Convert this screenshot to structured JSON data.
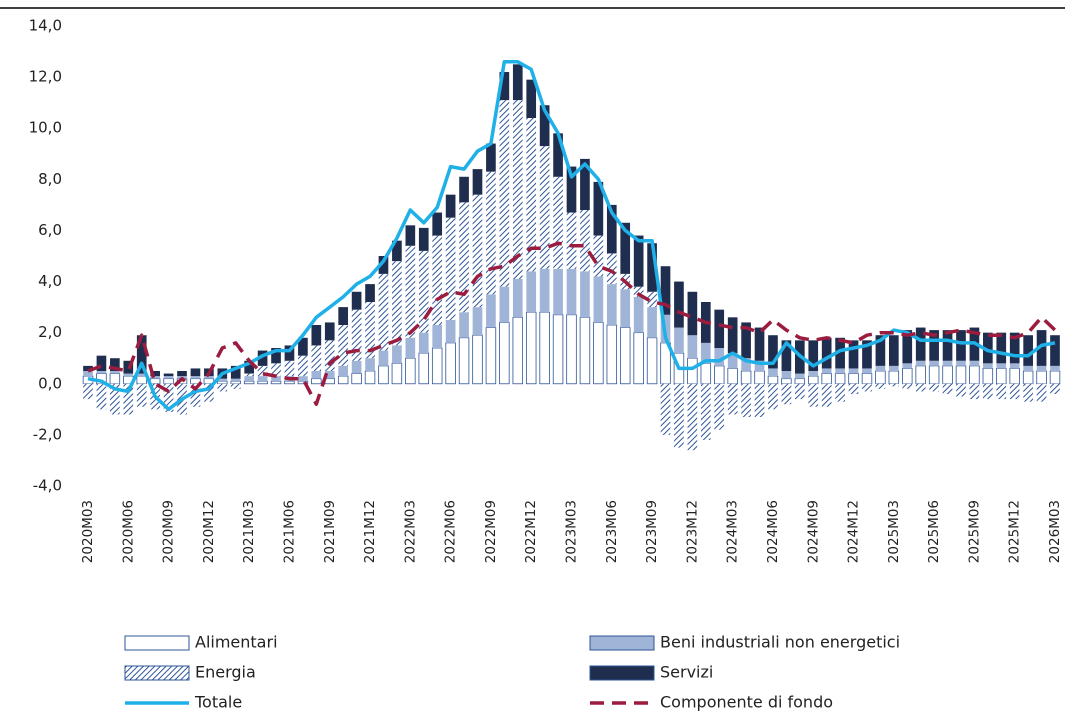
{
  "chart_data": {
    "type": "stacked-bar-line",
    "categories": [
      "2020M03",
      null,
      null,
      "2020M06",
      null,
      null,
      "2020M09",
      null,
      null,
      "2020M12",
      null,
      null,
      "2021M03",
      null,
      null,
      "2021M06",
      null,
      null,
      "2021M09",
      null,
      null,
      "2021M12",
      null,
      null,
      "2022M03",
      null,
      null,
      "2022M06",
      null,
      null,
      "2022M09",
      null,
      null,
      "2022M12",
      null,
      null,
      "2023M03",
      null,
      null,
      "2023M06",
      null,
      null,
      "2023M09",
      null,
      null,
      "2023M12",
      null,
      null,
      "2024M03",
      null,
      null,
      "2024M06",
      null,
      null,
      "2024M09",
      null,
      null,
      "2024M12",
      null,
      null,
      "2025M03",
      null,
      null,
      "2025M06",
      null,
      null,
      "2025M09",
      null,
      null,
      "2025M12",
      null,
      null,
      "2026M03"
    ],
    "series": [
      {
        "name": "Alimentari",
        "kind": "bar",
        "color": "#ffffff",
        "values": [
          0.3,
          0.4,
          0.4,
          0.3,
          0.3,
          0.2,
          0.2,
          0.2,
          0.2,
          0.2,
          0.1,
          0.1,
          0.1,
          0.1,
          0.1,
          0.1,
          0.1,
          0.2,
          0.2,
          0.3,
          0.4,
          0.5,
          0.7,
          0.8,
          1.0,
          1.2,
          1.4,
          1.6,
          1.8,
          1.9,
          2.2,
          2.4,
          2.6,
          2.8,
          2.8,
          2.7,
          2.7,
          2.6,
          2.4,
          2.3,
          2.2,
          2.0,
          1.8,
          1.6,
          1.2,
          1.0,
          0.8,
          0.7,
          0.6,
          0.5,
          0.5,
          0.3,
          0.2,
          0.2,
          0.3,
          0.4,
          0.4,
          0.4,
          0.4,
          0.5,
          0.5,
          0.6,
          0.7,
          0.7,
          0.7,
          0.7,
          0.7,
          0.6,
          0.6,
          0.6,
          0.5,
          0.5,
          0.5
        ]
      },
      {
        "name": "Beni industriali non energetici",
        "kind": "bar",
        "color": "#9fb4d6",
        "values": [
          0.2,
          0.1,
          0.1,
          0.1,
          0.1,
          0.1,
          0.1,
          0.1,
          0.1,
          0.1,
          0.1,
          0.1,
          0.2,
          0.2,
          0.2,
          0.2,
          0.2,
          0.3,
          0.3,
          0.4,
          0.5,
          0.5,
          0.6,
          0.7,
          0.8,
          0.8,
          0.9,
          0.9,
          1.0,
          1.1,
          1.3,
          1.4,
          1.5,
          1.6,
          1.7,
          1.8,
          1.8,
          1.8,
          1.8,
          1.6,
          1.5,
          1.4,
          1.2,
          1.1,
          1.0,
          0.9,
          0.8,
          0.7,
          0.6,
          0.5,
          0.4,
          0.3,
          0.3,
          0.2,
          0.2,
          0.2,
          0.2,
          0.2,
          0.2,
          0.2,
          0.2,
          0.2,
          0.2,
          0.2,
          0.2,
          0.2,
          0.2,
          0.2,
          0.2,
          0.2,
          0.2,
          0.2,
          0.2
        ]
      },
      {
        "name": "Energia",
        "kind": "bar",
        "color": "#2e5597",
        "pattern": "hatch",
        "values": [
          -0.6,
          -1.0,
          -1.2,
          -1.2,
          -0.9,
          -1.0,
          -1.1,
          -1.2,
          -0.9,
          -0.7,
          -0.3,
          -0.2,
          0.1,
          0.4,
          0.5,
          0.6,
          0.8,
          1.0,
          1.2,
          1.6,
          2.0,
          2.2,
          3.0,
          3.3,
          3.6,
          3.2,
          3.5,
          4.0,
          4.3,
          4.4,
          4.8,
          7.3,
          7.0,
          6.0,
          4.8,
          3.6,
          2.2,
          2.4,
          1.6,
          1.2,
          0.6,
          0.4,
          0.6,
          -2.0,
          -2.5,
          -2.6,
          -2.2,
          -1.8,
          -1.2,
          -1.3,
          -1.3,
          -1.0,
          -0.8,
          -0.6,
          -0.9,
          -0.9,
          -0.7,
          -0.4,
          -0.3,
          -0.2,
          -0.1,
          -0.2,
          -0.3,
          -0.3,
          -0.4,
          -0.5,
          -0.6,
          -0.6,
          -0.6,
          -0.6,
          -0.7,
          -0.7,
          -0.4
        ]
      },
      {
        "name": "Servizi",
        "kind": "bar",
        "color": "#1f2e4e",
        "values": [
          0.2,
          0.6,
          0.5,
          0.5,
          1.5,
          0.2,
          0.1,
          0.2,
          0.3,
          0.3,
          0.4,
          0.5,
          0.5,
          0.6,
          0.6,
          0.6,
          0.7,
          0.8,
          0.7,
          0.7,
          0.7,
          0.7,
          0.7,
          0.8,
          0.8,
          0.9,
          0.9,
          0.9,
          1.0,
          1.0,
          1.1,
          1.1,
          1.4,
          1.5,
          1.6,
          1.7,
          1.8,
          2.0,
          2.1,
          1.9,
          2.0,
          2.0,
          1.9,
          1.9,
          1.8,
          1.7,
          1.6,
          1.5,
          1.4,
          1.4,
          1.3,
          1.3,
          1.2,
          1.3,
          1.2,
          1.2,
          1.2,
          1.1,
          1.1,
          1.2,
          1.2,
          1.3,
          1.3,
          1.2,
          1.2,
          1.2,
          1.3,
          1.2,
          1.2,
          1.2,
          1.2,
          1.4,
          1.2
        ]
      },
      {
        "name": "Totale",
        "kind": "line",
        "dash": false,
        "color": "#1fb0e8",
        "values": [
          0.2,
          0.1,
          -0.2,
          -0.3,
          0.8,
          -0.5,
          -1.0,
          -0.6,
          -0.3,
          -0.2,
          0.4,
          0.6,
          0.8,
          1.1,
          1.3,
          1.3,
          1.9,
          2.6,
          3.0,
          3.4,
          3.9,
          4.2,
          4.8,
          5.7,
          6.8,
          6.3,
          6.9,
          8.5,
          8.4,
          9.1,
          9.4,
          12.6,
          12.6,
          12.3,
          10.7,
          9.8,
          8.1,
          8.6,
          8.0,
          6.7,
          6.0,
          5.6,
          5.6,
          1.8,
          0.6,
          0.6,
          0.9,
          0.9,
          1.2,
          0.9,
          0.8,
          0.8,
          1.6,
          1.1,
          0.7,
          1.0,
          1.3,
          1.4,
          1.5,
          1.7,
          2.1,
          2.0,
          1.7,
          1.7,
          1.7,
          1.6,
          1.6,
          1.3,
          1.2,
          1.1,
          1.1,
          1.5,
          1.6
        ]
      },
      {
        "name": "Componente di fondo",
        "kind": "line",
        "dash": true,
        "color": "#9b1c3f",
        "values": [
          0.5,
          0.7,
          0.6,
          0.5,
          1.9,
          0.0,
          -0.3,
          0.2,
          -0.2,
          0.4,
          1.4,
          1.6,
          0.9,
          0.4,
          0.3,
          0.2,
          0.2,
          -0.8,
          0.8,
          1.2,
          1.3,
          1.3,
          1.5,
          1.7,
          2.0,
          2.5,
          3.3,
          3.6,
          3.5,
          4.2,
          4.5,
          4.6,
          5.0,
          5.3,
          5.3,
          5.5,
          5.4,
          5.4,
          4.6,
          4.4,
          4.0,
          3.5,
          3.2,
          3.1,
          2.8,
          2.6,
          2.4,
          2.3,
          2.2,
          2.2,
          2.0,
          2.5,
          2.1,
          1.8,
          1.7,
          1.8,
          1.7,
          1.6,
          1.9,
          2.0,
          2.0,
          1.9,
          2.0,
          1.9,
          2.0,
          2.1,
          2.0,
          1.9,
          1.9,
          1.8,
          2.0,
          2.6,
          2.1
        ]
      }
    ],
    "ylim": [
      -4,
      14
    ],
    "yticks": [
      {
        "value": -4,
        "label": "-4,0"
      },
      {
        "value": -2,
        "label": "-2,0"
      },
      {
        "value": 0,
        "label": "0,0"
      },
      {
        "value": 2,
        "label": "2,0"
      },
      {
        "value": 4,
        "label": "4,0"
      },
      {
        "value": 6,
        "label": "6,0"
      },
      {
        "value": 8,
        "label": "8,0"
      },
      {
        "value": 10,
        "label": "10,0"
      },
      {
        "value": 12,
        "label": "12,0"
      },
      {
        "value": 14,
        "label": "14,0"
      }
    ],
    "grid": false,
    "legend": "bottom"
  }
}
